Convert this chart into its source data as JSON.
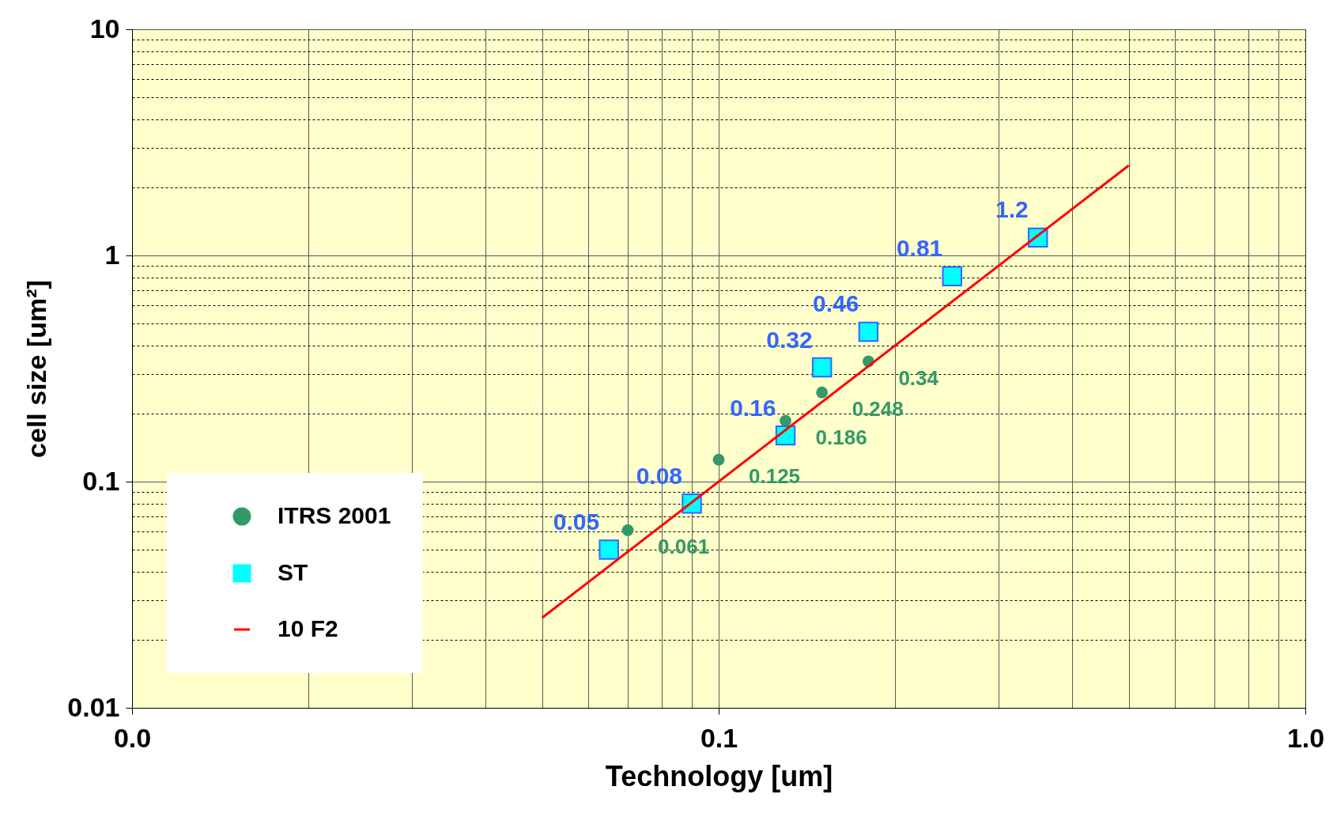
{
  "chart_data": {
    "type": "scatter",
    "xlabel": "Technology [um]",
    "ylabel": "cell size [um²]",
    "log": "xy",
    "grid": true,
    "legend": "bottom left",
    "xlim": [
      0.01,
      1
    ],
    "ylim": [
      0.01,
      10
    ],
    "xticks": [
      {
        "value": 0.01,
        "label": "0.0"
      },
      {
        "value": 0.02,
        "label": null
      },
      {
        "value": 0.03,
        "label": null
      },
      {
        "value": 0.04,
        "label": null
      },
      {
        "value": 0.05,
        "label": null
      },
      {
        "value": 0.06,
        "label": null
      },
      {
        "value": 0.07,
        "label": null
      },
      {
        "value": 0.08,
        "label": null
      },
      {
        "value": 0.09,
        "label": null
      },
      0.1,
      {
        "value": 0.2,
        "label": null
      },
      {
        "value": 0.3,
        "label": null
      },
      {
        "value": 0.4,
        "label": null
      },
      {
        "value": 0.5,
        "label": null
      },
      {
        "value": 0.6,
        "label": null
      },
      {
        "value": 0.7,
        "label": null
      },
      {
        "value": 0.8,
        "label": null
      },
      {
        "value": 0.9,
        "label": null
      },
      {
        "value": 1,
        "label": "1.0"
      }
    ],
    "yticks": [
      0.01,
      {
        "value": 0.02,
        "label": null
      },
      {
        "value": 0.03,
        "label": null
      },
      {
        "value": 0.04,
        "label": null
      },
      {
        "value": 0.05,
        "label": null
      },
      {
        "value": 0.06,
        "label": null
      },
      {
        "value": 0.07,
        "label": null
      },
      {
        "value": 0.08,
        "label": null
      },
      {
        "value": 0.09,
        "label": null
      },
      0.1,
      {
        "value": 0.2,
        "label": null
      },
      {
        "value": 0.3,
        "label": null
      },
      {
        "value": 0.4,
        "label": null
      },
      {
        "value": 0.5,
        "label": null
      },
      {
        "value": 0.6,
        "label": null
      },
      {
        "value": 0.7,
        "label": null
      },
      {
        "value": 0.8,
        "label": null
      },
      {
        "value": 0.9,
        "label": null
      },
      1,
      {
        "value": 2,
        "label": null
      },
      {
        "value": 3,
        "label": null
      },
      {
        "value": 4,
        "label": null
      },
      {
        "value": 5,
        "label": null
      },
      {
        "value": 6,
        "label": null
      },
      {
        "value": 7,
        "label": null
      },
      {
        "value": 8,
        "label": null
      },
      {
        "value": 9,
        "label": null
      },
      10
    ],
    "series": [
      {
        "name": "ITRS 2001",
        "marker": "circle",
        "color": "#339966",
        "x": [
          0.07,
          0.1,
          0.13,
          0.15,
          0.18
        ],
        "values": [
          0.061,
          0.125,
          0.186,
          0.248,
          0.34
        ],
        "value_labels": [
          "0.061",
          "0.125",
          "0.186",
          "0.248",
          "0.34"
        ]
      },
      {
        "name": "ST",
        "marker": "square",
        "color": "#00ffff",
        "x": [
          0.065,
          0.09,
          0.13,
          0.15,
          0.18,
          0.25,
          0.35
        ],
        "values": [
          0.05,
          0.08,
          0.16,
          0.32,
          0.46,
          0.81,
          1.2
        ],
        "value_labels": [
          "0.05",
          "0.08",
          "0.16",
          "0.32",
          "0.46",
          "0.81",
          "1.2"
        ]
      },
      {
        "name": "10 F2",
        "type": "line",
        "line_style": "solid",
        "color": "#ff0000",
        "x": [
          0.05,
          0.5
        ],
        "values": [
          0.025,
          2.5
        ]
      }
    ]
  }
}
